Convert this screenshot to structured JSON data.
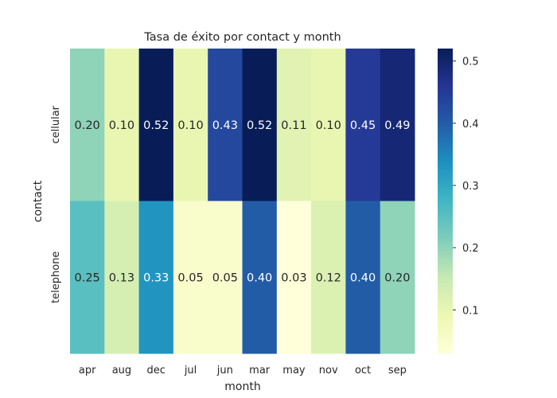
{
  "chart_data": {
    "type": "heatmap",
    "title": "Tasa de éxito por contact y month",
    "xlabel": "month",
    "ylabel": "contact",
    "x_categories": [
      "apr",
      "aug",
      "dec",
      "jul",
      "jun",
      "mar",
      "may",
      "nov",
      "oct",
      "sep"
    ],
    "y_categories": [
      "cellular",
      "telephone"
    ],
    "values": [
      [
        0.2,
        0.1,
        0.52,
        0.1,
        0.43,
        0.52,
        0.11,
        0.1,
        0.45,
        0.49
      ],
      [
        0.25,
        0.13,
        0.33,
        0.05,
        0.05,
        0.4,
        0.03,
        0.12,
        0.4,
        0.2
      ]
    ],
    "value_labels": [
      [
        "0.20",
        "0.10",
        "0.52",
        "0.10",
        "0.43",
        "0.52",
        "0.11",
        "0.10",
        "0.45",
        "0.49"
      ],
      [
        "0.25",
        "0.13",
        "0.33",
        "0.05",
        "0.05",
        "0.40",
        "0.03",
        "0.12",
        "0.40",
        "0.20"
      ]
    ],
    "colormap": "YlGnBu",
    "color_range": [
      0.03,
      0.52
    ],
    "colorbar_ticks": [
      0.1,
      0.2,
      0.3,
      0.4,
      0.5
    ],
    "colorbar_tick_labels": [
      "0.1",
      "0.2",
      "0.3",
      "0.4",
      "0.5"
    ],
    "grid": false
  }
}
